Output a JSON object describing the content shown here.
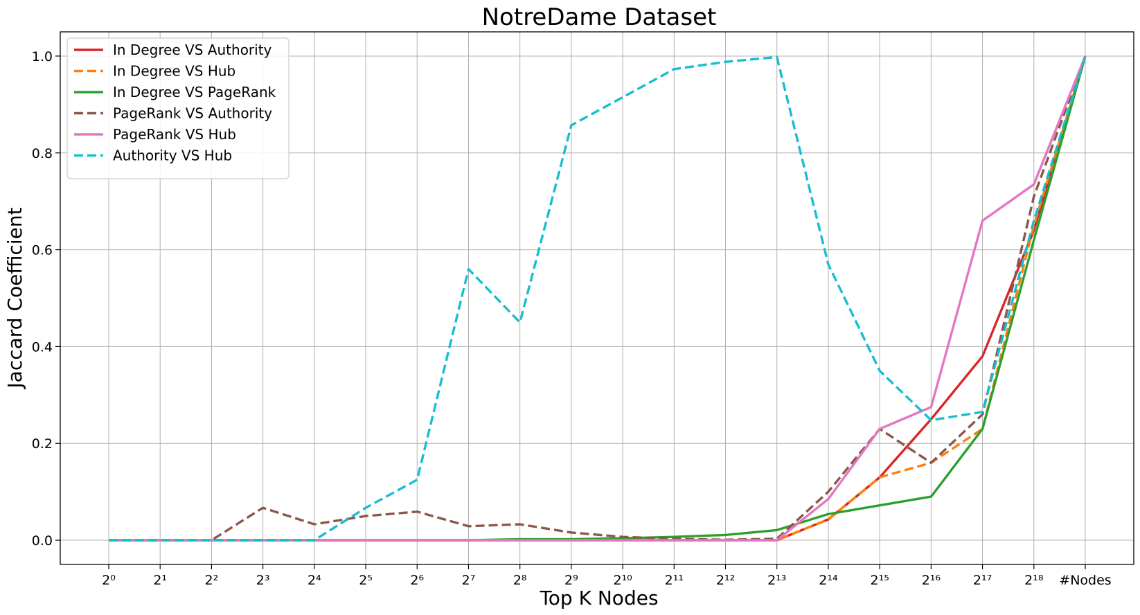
{
  "chart_data": {
    "type": "line",
    "title": "NotreDame Dataset",
    "xlabel": "Top K Nodes",
    "ylabel": "Jaccard Coefficient",
    "categories": [
      "2⁰",
      "2¹",
      "2²",
      "2³",
      "2⁴",
      "2⁵",
      "2⁶",
      "2⁷",
      "2⁸",
      "2⁹",
      "2¹⁰",
      "2¹¹",
      "2¹²",
      "2¹³",
      "2¹⁴",
      "2¹⁵",
      "2¹⁶",
      "2¹⁷",
      "2¹⁸",
      "#Nodes"
    ],
    "ylim": [
      -0.05,
      1.05
    ],
    "yticks": [
      "0.0",
      "0.2",
      "0.4",
      "0.6",
      "0.8",
      "1.0"
    ],
    "grid": true,
    "legend_position": "top-left",
    "series": [
      {
        "name": "In Degree VS Authority",
        "color": "#d62728",
        "dash": "solid",
        "values": [
          0,
          0,
          0,
          0,
          0,
          0,
          0,
          0,
          0,
          0,
          0,
          0,
          0,
          0,
          0.043,
          0.13,
          0.25,
          0.38,
          0.64,
          1.0
        ]
      },
      {
        "name": "In Degree VS Hub",
        "color": "#ff7f0e",
        "dash": "dashed",
        "values": [
          0,
          0,
          0,
          0,
          0,
          0,
          0,
          0,
          0,
          0,
          0,
          0,
          0,
          0,
          0.043,
          0.13,
          0.16,
          0.23,
          0.65,
          1.0
        ]
      },
      {
        "name": "In Degree VS PageRank",
        "color": "#2ca02c",
        "dash": "solid",
        "values": [
          0,
          0,
          0,
          0,
          0,
          0,
          0,
          0,
          0.002,
          0.002,
          0.004,
          0.007,
          0.011,
          0.021,
          0.054,
          0.072,
          0.09,
          0.23,
          0.62,
          1.0
        ]
      },
      {
        "name": "PageRank VS Authority",
        "color": "#8c564b",
        "dash": "dashed",
        "values": [
          0,
          0,
          0,
          0.067,
          0.033,
          0.05,
          0.059,
          0.029,
          0.033,
          0.016,
          0.007,
          0.003,
          0.001,
          0.003,
          0.1,
          0.23,
          0.16,
          0.26,
          0.71,
          1.0
        ]
      },
      {
        "name": "PageRank VS Hub",
        "color": "#e377c2",
        "dash": "solid",
        "values": [
          0,
          0,
          0,
          0,
          0,
          0,
          0,
          0,
          0,
          0,
          0,
          0,
          0,
          0,
          0.085,
          0.23,
          0.275,
          0.66,
          0.735,
          1.0
        ]
      },
      {
        "name": "Authority VS Hub",
        "color": "#17becf",
        "dash": "dashed",
        "values": [
          0,
          0,
          0,
          0,
          0,
          0.067,
          0.125,
          0.56,
          0.45,
          0.857,
          0.915,
          0.973,
          0.988,
          0.998,
          0.57,
          0.35,
          0.248,
          0.265,
          0.66,
          1.0
        ]
      }
    ]
  }
}
